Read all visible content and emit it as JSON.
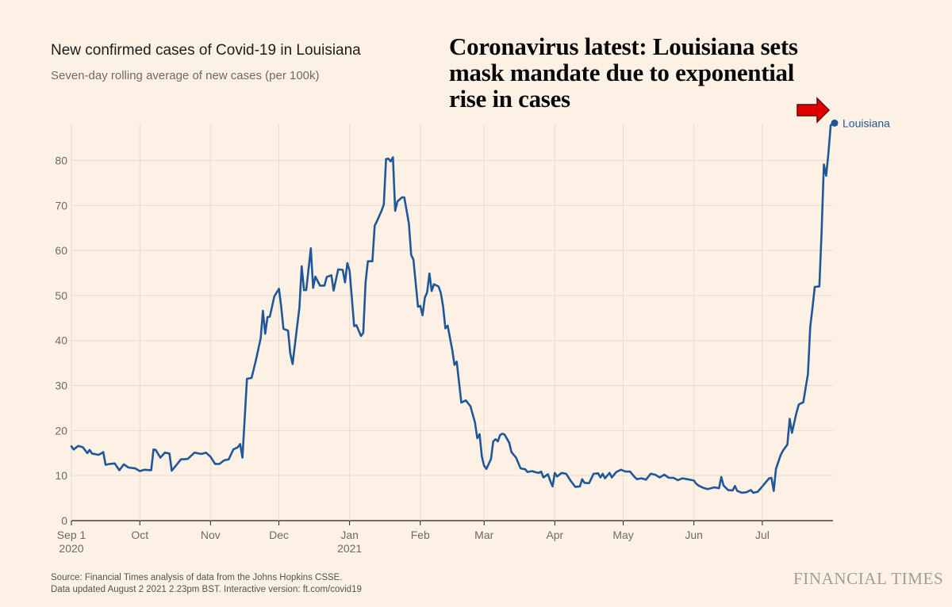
{
  "headline": "Coronavirus latest: Louisiana sets mask mandate due to exponential rise in cases",
  "source": {
    "line1": "Source: Financial Times analysis of data from the Johns Hopkins CSSE.",
    "line2": "Data updated August 2 2021 2.23pm BST. Interactive version: ft.com/covid19"
  },
  "brand": "FINANCIAL TIMES",
  "colors": {
    "background": "#fdf1e5",
    "line": "#1f5799",
    "arrow": "#e00000",
    "grid": "#e6dbd0"
  },
  "chart_data": {
    "type": "line",
    "title": "New confirmed cases of Covid-19 in Louisiana",
    "subtitle": "Seven-day rolling average of new cases (per 100k)",
    "xlabel": "",
    "ylabel": "",
    "ylim": [
      0,
      88
    ],
    "xlim": [
      "2020-09-01",
      "2021-08-01"
    ],
    "grid": true,
    "yticks": [
      0,
      10,
      20,
      30,
      40,
      50,
      60,
      70,
      80
    ],
    "xticks": [
      {
        "date": "2020-09-01",
        "label": "Sep 1",
        "sub": "2020"
      },
      {
        "date": "2020-10-01",
        "label": "Oct",
        "sub": ""
      },
      {
        "date": "2020-11-01",
        "label": "Nov",
        "sub": ""
      },
      {
        "date": "2020-12-01",
        "label": "Dec",
        "sub": ""
      },
      {
        "date": "2021-01-01",
        "label": "Jan",
        "sub": "2021"
      },
      {
        "date": "2021-02-01",
        "label": "Feb",
        "sub": ""
      },
      {
        "date": "2021-03-01",
        "label": "Mar",
        "sub": ""
      },
      {
        "date": "2021-04-01",
        "label": "Apr",
        "sub": ""
      },
      {
        "date": "2021-05-01",
        "label": "May",
        "sub": ""
      },
      {
        "date": "2021-06-01",
        "label": "Jun",
        "sub": ""
      },
      {
        "date": "2021-07-01",
        "label": "Jul",
        "sub": ""
      }
    ],
    "series": [
      {
        "name": "Louisiana",
        "points": [
          [
            "2020-09-01",
            16.5
          ],
          [
            "2020-09-02",
            15.8
          ],
          [
            "2020-09-04",
            16.6
          ],
          [
            "2020-09-06",
            16.3
          ],
          [
            "2020-09-08",
            15.0
          ],
          [
            "2020-09-09",
            15.7
          ],
          [
            "2020-09-10",
            14.9
          ],
          [
            "2020-09-13",
            14.6
          ],
          [
            "2020-09-15",
            15.2
          ],
          [
            "2020-09-16",
            12.4
          ],
          [
            "2020-09-18",
            12.6
          ],
          [
            "2020-09-20",
            12.7
          ],
          [
            "2020-09-22",
            11.2
          ],
          [
            "2020-09-24",
            12.5
          ],
          [
            "2020-09-26",
            11.8
          ],
          [
            "2020-09-29",
            11.6
          ],
          [
            "2020-10-01",
            11.0
          ],
          [
            "2020-10-03",
            11.3
          ],
          [
            "2020-10-06",
            11.2
          ],
          [
            "2020-10-07",
            15.8
          ],
          [
            "2020-10-08",
            15.7
          ],
          [
            "2020-10-10",
            14.0
          ],
          [
            "2020-10-12",
            15.1
          ],
          [
            "2020-10-14",
            14.9
          ],
          [
            "2020-10-15",
            11.1
          ],
          [
            "2020-10-17",
            12.3
          ],
          [
            "2020-10-19",
            13.6
          ],
          [
            "2020-10-22",
            13.7
          ],
          [
            "2020-10-25",
            15.1
          ],
          [
            "2020-10-28",
            14.8
          ],
          [
            "2020-10-30",
            15.1
          ],
          [
            "2020-11-01",
            14.2
          ],
          [
            "2020-11-03",
            12.6
          ],
          [
            "2020-11-05",
            12.6
          ],
          [
            "2020-11-07",
            13.4
          ],
          [
            "2020-11-09",
            13.6
          ],
          [
            "2020-11-11",
            15.8
          ],
          [
            "2020-11-13",
            16.3
          ],
          [
            "2020-11-14",
            17.0
          ],
          [
            "2020-11-15",
            14.0
          ],
          [
            "2020-11-17",
            31.5
          ],
          [
            "2020-11-19",
            31.7
          ],
          [
            "2020-11-21",
            35.8
          ],
          [
            "2020-11-23",
            40.5
          ],
          [
            "2020-11-24",
            46.6
          ],
          [
            "2020-11-25",
            41.5
          ],
          [
            "2020-11-26",
            45.2
          ],
          [
            "2020-11-27",
            45.3
          ],
          [
            "2020-11-29",
            49.8
          ],
          [
            "2020-12-01",
            51.5
          ],
          [
            "2020-12-02",
            47.6
          ],
          [
            "2020-12-03",
            42.6
          ],
          [
            "2020-12-05",
            42.2
          ],
          [
            "2020-12-06",
            37.1
          ],
          [
            "2020-12-07",
            34.8
          ],
          [
            "2020-12-10",
            47.3
          ],
          [
            "2020-12-11",
            56.5
          ],
          [
            "2020-12-12",
            51.2
          ],
          [
            "2020-12-13",
            51.2
          ],
          [
            "2020-12-15",
            60.5
          ],
          [
            "2020-12-16",
            51.7
          ],
          [
            "2020-12-17",
            54.2
          ],
          [
            "2020-12-19",
            52.2
          ],
          [
            "2020-12-21",
            52.2
          ],
          [
            "2020-12-22",
            54.1
          ],
          [
            "2020-12-24",
            54.5
          ],
          [
            "2020-12-25",
            51.1
          ],
          [
            "2020-12-27",
            55.8
          ],
          [
            "2020-12-29",
            55.7
          ],
          [
            "2020-12-30",
            52.9
          ],
          [
            "2020-12-31",
            57.2
          ],
          [
            "2021-01-01",
            55.5
          ],
          [
            "2021-01-03",
            43.2
          ],
          [
            "2021-01-04",
            43.4
          ],
          [
            "2021-01-06",
            41.0
          ],
          [
            "2021-01-07",
            41.7
          ],
          [
            "2021-01-08",
            52.9
          ],
          [
            "2021-01-09",
            57.6
          ],
          [
            "2021-01-11",
            57.6
          ],
          [
            "2021-01-12",
            65.5
          ],
          [
            "2021-01-13",
            66.5
          ],
          [
            "2021-01-15",
            68.8
          ],
          [
            "2021-01-16",
            70.2
          ],
          [
            "2021-01-17",
            80.3
          ],
          [
            "2021-01-18",
            80.4
          ],
          [
            "2021-01-19",
            79.8
          ],
          [
            "2021-01-20",
            80.7
          ],
          [
            "2021-01-21",
            68.8
          ],
          [
            "2021-01-22",
            70.9
          ],
          [
            "2021-01-24",
            71.8
          ],
          [
            "2021-01-25",
            71.8
          ],
          [
            "2021-01-27",
            66.0
          ],
          [
            "2021-01-28",
            59.0
          ],
          [
            "2021-01-29",
            58.0
          ],
          [
            "2021-01-31",
            47.5
          ],
          [
            "2021-02-01",
            47.7
          ],
          [
            "2021-02-02",
            45.6
          ],
          [
            "2021-02-03",
            49.5
          ],
          [
            "2021-02-04",
            50.7
          ],
          [
            "2021-02-05",
            54.9
          ],
          [
            "2021-02-06",
            51.0
          ],
          [
            "2021-02-07",
            52.5
          ],
          [
            "2021-02-09",
            52.0
          ],
          [
            "2021-02-10",
            50.6
          ],
          [
            "2021-02-11",
            47.6
          ],
          [
            "2021-02-12",
            42.7
          ],
          [
            "2021-02-13",
            43.3
          ],
          [
            "2021-02-15",
            38.0
          ],
          [
            "2021-02-16",
            34.6
          ],
          [
            "2021-02-17",
            35.3
          ],
          [
            "2021-02-19",
            26.2
          ],
          [
            "2021-02-21",
            26.7
          ],
          [
            "2021-02-23",
            25.4
          ],
          [
            "2021-02-25",
            21.8
          ],
          [
            "2021-02-26",
            18.3
          ],
          [
            "2021-02-27",
            19.2
          ],
          [
            "2021-02-28",
            14.2
          ],
          [
            "2021-03-01",
            12.2
          ],
          [
            "2021-03-02",
            11.5
          ],
          [
            "2021-03-04",
            13.7
          ],
          [
            "2021-03-05",
            17.6
          ],
          [
            "2021-03-06",
            18.1
          ],
          [
            "2021-03-07",
            17.6
          ],
          [
            "2021-03-08",
            19.0
          ],
          [
            "2021-03-09",
            19.3
          ],
          [
            "2021-03-10",
            19.1
          ],
          [
            "2021-03-12",
            17.3
          ],
          [
            "2021-03-13",
            15.2
          ],
          [
            "2021-03-15",
            14.0
          ],
          [
            "2021-03-17",
            11.6
          ],
          [
            "2021-03-19",
            11.4
          ],
          [
            "2021-03-20",
            10.8
          ],
          [
            "2021-03-22",
            11.0
          ],
          [
            "2021-03-24",
            10.7
          ],
          [
            "2021-03-25",
            10.6
          ],
          [
            "2021-03-26",
            10.9
          ],
          [
            "2021-03-27",
            9.6
          ],
          [
            "2021-03-29",
            10.3
          ],
          [
            "2021-03-30",
            8.8
          ],
          [
            "2021-03-31",
            7.6
          ],
          [
            "2021-04-01",
            10.6
          ],
          [
            "2021-04-02",
            9.8
          ],
          [
            "2021-04-04",
            10.6
          ],
          [
            "2021-04-06",
            10.4
          ],
          [
            "2021-04-08",
            8.8
          ],
          [
            "2021-04-10",
            7.5
          ],
          [
            "2021-04-12",
            7.6
          ],
          [
            "2021-04-13",
            9.2
          ],
          [
            "2021-04-14",
            8.4
          ],
          [
            "2021-04-16",
            8.3
          ],
          [
            "2021-04-18",
            10.4
          ],
          [
            "2021-04-20",
            10.5
          ],
          [
            "2021-04-21",
            9.6
          ],
          [
            "2021-04-22",
            10.4
          ],
          [
            "2021-04-23",
            9.4
          ],
          [
            "2021-04-25",
            10.6
          ],
          [
            "2021-04-26",
            9.6
          ],
          [
            "2021-04-28",
            10.8
          ],
          [
            "2021-04-30",
            11.3
          ],
          [
            "2021-05-02",
            10.9
          ],
          [
            "2021-05-04",
            10.9
          ],
          [
            "2021-05-06",
            9.7
          ],
          [
            "2021-05-07",
            9.2
          ],
          [
            "2021-05-09",
            9.4
          ],
          [
            "2021-05-11",
            9.1
          ],
          [
            "2021-05-13",
            10.4
          ],
          [
            "2021-05-15",
            10.2
          ],
          [
            "2021-05-17",
            9.6
          ],
          [
            "2021-05-19",
            10.2
          ],
          [
            "2021-05-21",
            9.5
          ],
          [
            "2021-05-23",
            9.5
          ],
          [
            "2021-05-25",
            9.0
          ],
          [
            "2021-05-27",
            9.4
          ],
          [
            "2021-05-29",
            9.2
          ],
          [
            "2021-06-01",
            8.9
          ],
          [
            "2021-06-02",
            8.2
          ],
          [
            "2021-06-03",
            7.8
          ],
          [
            "2021-06-05",
            7.3
          ],
          [
            "2021-06-07",
            7.0
          ],
          [
            "2021-06-10",
            7.4
          ],
          [
            "2021-06-12",
            7.2
          ],
          [
            "2021-06-13",
            9.7
          ],
          [
            "2021-06-14",
            7.8
          ],
          [
            "2021-06-16",
            6.8
          ],
          [
            "2021-06-18",
            6.7
          ],
          [
            "2021-06-19",
            7.7
          ],
          [
            "2021-06-20",
            6.6
          ],
          [
            "2021-06-22",
            6.2
          ],
          [
            "2021-06-24",
            6.3
          ],
          [
            "2021-06-26",
            6.8
          ],
          [
            "2021-06-27",
            6.2
          ],
          [
            "2021-06-29",
            6.4
          ],
          [
            "2021-07-01",
            7.6
          ],
          [
            "2021-07-03",
            8.8
          ],
          [
            "2021-07-04",
            9.4
          ],
          [
            "2021-07-05",
            9.5
          ],
          [
            "2021-07-06",
            6.6
          ],
          [
            "2021-07-07",
            11.5
          ],
          [
            "2021-07-09",
            14.5
          ],
          [
            "2021-07-10",
            15.5
          ],
          [
            "2021-07-12",
            16.9
          ],
          [
            "2021-07-13",
            22.6
          ],
          [
            "2021-07-14",
            19.5
          ],
          [
            "2021-07-16",
            24.0
          ],
          [
            "2021-07-17",
            25.8
          ],
          [
            "2021-07-19",
            26.3
          ],
          [
            "2021-07-20",
            29.5
          ],
          [
            "2021-07-21",
            32.5
          ],
          [
            "2021-07-22",
            43.0
          ],
          [
            "2021-07-23",
            47.2
          ],
          [
            "2021-07-24",
            51.9
          ],
          [
            "2021-07-26",
            52.0
          ],
          [
            "2021-07-27",
            64.0
          ],
          [
            "2021-07-28",
            79.1
          ],
          [
            "2021-07-29",
            76.6
          ],
          [
            "2021-07-30",
            81.8
          ],
          [
            "2021-07-31",
            87.8
          ],
          [
            "2021-08-01",
            88.3
          ]
        ]
      }
    ]
  }
}
